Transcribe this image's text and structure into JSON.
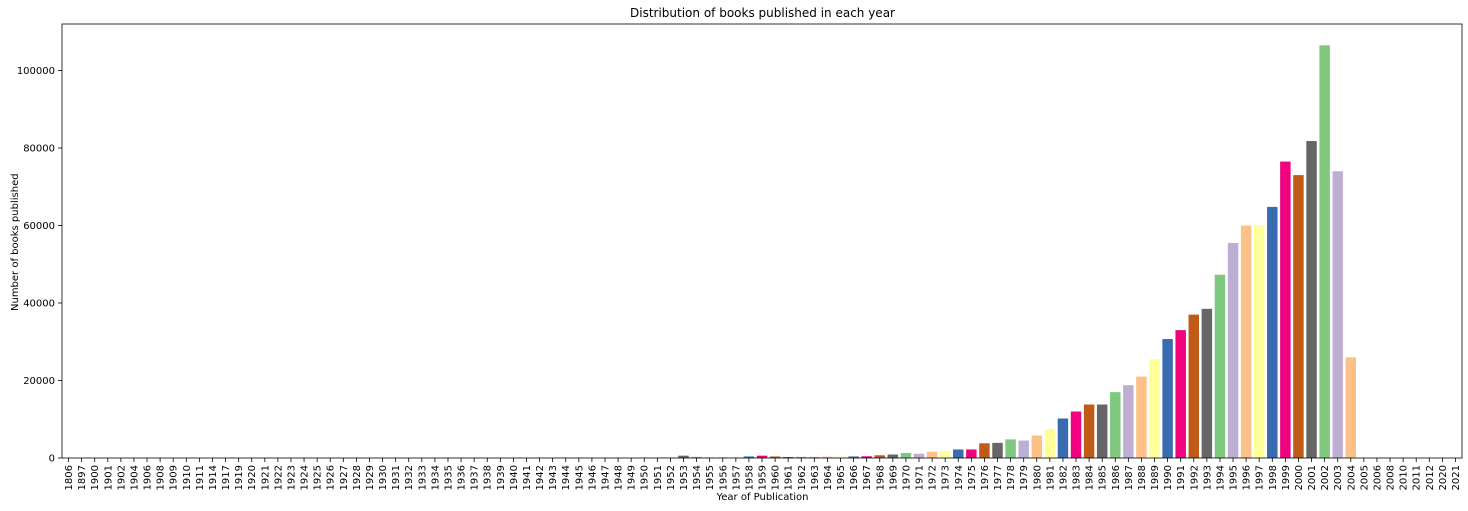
{
  "chart_data": {
    "type": "bar",
    "title": "Distribution of books published in each year",
    "xlabel": "Year of Publication",
    "ylabel": "Number of books published",
    "ylim": [
      0,
      112000
    ],
    "yticks": [
      0,
      20000,
      40000,
      60000,
      80000,
      100000
    ],
    "grid": false,
    "categories": [
      "1806",
      "1897",
      "1900",
      "1901",
      "1902",
      "1904",
      "1906",
      "1908",
      "1909",
      "1910",
      "1911",
      "1914",
      "1917",
      "1919",
      "1920",
      "1921",
      "1922",
      "1923",
      "1924",
      "1925",
      "1926",
      "1927",
      "1928",
      "1929",
      "1930",
      "1931",
      "1932",
      "1933",
      "1934",
      "1935",
      "1936",
      "1937",
      "1938",
      "1939",
      "1940",
      "1941",
      "1942",
      "1943",
      "1944",
      "1945",
      "1946",
      "1947",
      "1948",
      "1949",
      "1950",
      "1951",
      "1952",
      "1953",
      "1954",
      "1955",
      "1956",
      "1957",
      "1958",
      "1959",
      "1960",
      "1961",
      "1962",
      "1963",
      "1964",
      "1965",
      "1966",
      "1967",
      "1968",
      "1969",
      "1970",
      "1971",
      "1972",
      "1973",
      "1974",
      "1975",
      "1976",
      "1977",
      "1978",
      "1979",
      "1980",
      "1981",
      "1982",
      "1983",
      "1984",
      "1985",
      "1986",
      "1987",
      "1988",
      "1989",
      "1990",
      "1991",
      "1992",
      "1993",
      "1994",
      "1995",
      "1996",
      "1997",
      "1998",
      "1999",
      "2000",
      "2001",
      "2002",
      "2003",
      "2004",
      "2005",
      "2006",
      "2008",
      "2010",
      "2011",
      "2012",
      "2020",
      "2021"
    ],
    "values": [
      1,
      1,
      2,
      3,
      1,
      1,
      2,
      2,
      2,
      3,
      3,
      2,
      2,
      3,
      10,
      5,
      5,
      5,
      5,
      5,
      10,
      15,
      15,
      15,
      15,
      20,
      20,
      20,
      20,
      20,
      25,
      25,
      25,
      25,
      35,
      35,
      35,
      35,
      35,
      35,
      40,
      45,
      45,
      45,
      50,
      50,
      60,
      600,
      300,
      150,
      200,
      300,
      400,
      600,
      400,
      250,
      300,
      300,
      350,
      400,
      400,
      450,
      700,
      900,
      1300,
      1100,
      1600,
      1800,
      2200,
      2200,
      3800,
      3900,
      4800,
      4500,
      5800,
      7500,
      10200,
      12000,
      13800,
      13800,
      17000,
      18800,
      21000,
      25500,
      30700,
      33000,
      37000,
      38500,
      47300,
      55500,
      60000,
      60100,
      64800,
      76500,
      73000,
      81800,
      106500,
      74000,
      26000,
      12,
      8,
      6,
      4,
      3,
      3,
      2,
      3
    ],
    "palette": [
      "#7fc97f",
      "#beaed4",
      "#fdc086",
      "#ffff99",
      "#386cb0",
      "#f0027f",
      "#bf5b17",
      "#666666"
    ]
  }
}
